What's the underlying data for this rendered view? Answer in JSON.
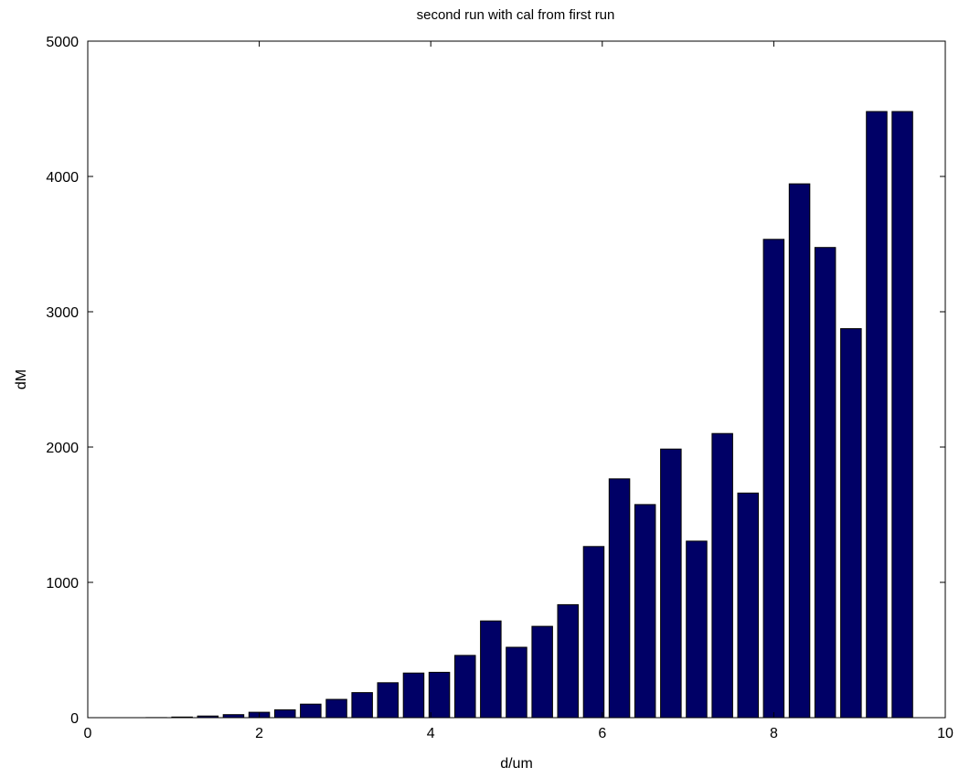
{
  "chart_data": {
    "type": "bar",
    "title": "second run with cal from first run",
    "xlabel": "d/um",
    "ylabel": "dM",
    "xlim": [
      0,
      10
    ],
    "ylim": [
      0,
      5000
    ],
    "xticks": [
      0,
      2,
      4,
      6,
      8,
      10
    ],
    "yticks": [
      0,
      1000,
      2000,
      3000,
      4000,
      5000
    ],
    "grid": false,
    "bar_color": "#000066",
    "x": [
      0.2,
      0.5,
      0.8,
      1.1,
      1.4,
      1.7,
      2.0,
      2.3,
      2.6,
      2.9,
      3.2,
      3.5,
      3.8,
      4.1,
      4.4,
      4.7,
      5.0,
      5.3,
      5.6,
      5.9,
      6.2,
      6.5,
      6.8,
      7.1,
      7.4,
      7.7,
      8.0,
      8.3,
      8.6,
      8.9,
      9.2,
      9.5,
      9.8
    ],
    "values": [
      0,
      0,
      1,
      5,
      12,
      22,
      40,
      58,
      100,
      135,
      185,
      258,
      330,
      335,
      460,
      715,
      520,
      675,
      835,
      1265,
      1765,
      1575,
      1985,
      1305,
      2100,
      1660,
      3535,
      3945,
      3475,
      2875,
      4480,
      4480,
      0
    ]
  }
}
